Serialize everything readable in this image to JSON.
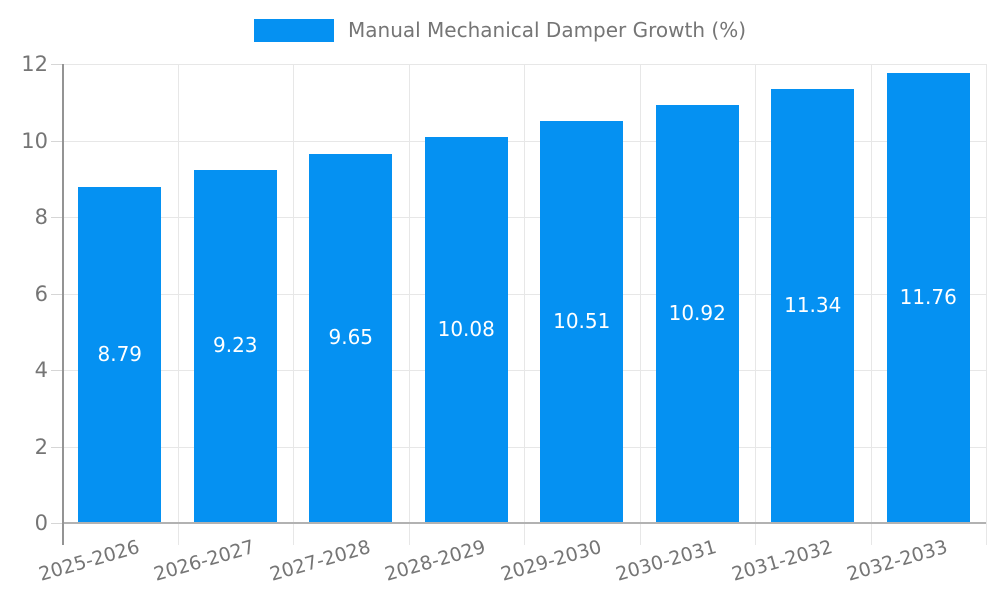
{
  "legend": {
    "label": "Manual Mechanical Damper Growth (%)"
  },
  "colors": {
    "bar": "#0591f2",
    "value_label": "#ffffff",
    "tick_text": "#757575",
    "gridline": "#e7e7e7",
    "y_axis_line": "#949494",
    "x_axis_line": "#b2b2b2"
  },
  "chart_data": {
    "type": "bar",
    "title": "Manual Mechanical Damper Growth (%)",
    "categories": [
      "2025-2026",
      "2026-2027",
      "2027-2028",
      "2028-2029",
      "2029-2030",
      "2030-2031",
      "2031-2032",
      "2032-2033"
    ],
    "values": [
      8.79,
      9.23,
      9.65,
      10.08,
      10.51,
      10.92,
      11.34,
      11.76
    ],
    "value_labels": [
      "8.79",
      "9.23",
      "9.65",
      "10.08",
      "10.51",
      "10.92",
      "11.34",
      "11.76"
    ],
    "xlabel": "",
    "ylabel": "",
    "y_ticks": [
      0,
      2,
      4,
      6,
      8,
      10,
      12
    ],
    "ylim": [
      0,
      12
    ],
    "grid": true,
    "legend_position": "top",
    "value_label_position": "inside-middle"
  }
}
